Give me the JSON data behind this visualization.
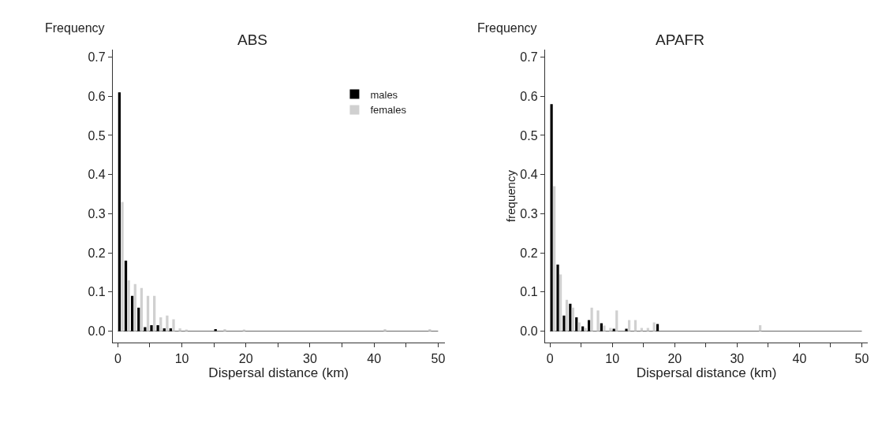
{
  "chart_data": [
    {
      "type": "histogram",
      "title": "ABS",
      "xlabel": "Dispersal distance (km)",
      "annotations": [
        "Frequency"
      ],
      "bins": [
        0,
        1,
        2,
        3,
        4,
        5,
        6,
        7,
        8,
        9,
        10,
        11,
        12,
        13,
        14,
        15,
        16,
        17,
        18,
        19,
        20,
        21,
        22,
        23,
        24,
        25,
        26,
        27,
        28,
        29,
        30,
        31,
        32,
        33,
        34,
        35,
        36,
        37,
        38,
        39,
        40,
        41,
        42,
        43,
        44,
        45,
        46,
        47,
        48,
        49,
        50
      ],
      "series": [
        {
          "name": "males",
          "color": "#000000",
          "values": [
            0.61,
            0.18,
            0.09,
            0.06,
            0.01,
            0.015,
            0.015,
            0.007,
            0.007,
            0,
            0,
            0,
            0,
            0,
            0,
            0.005,
            0,
            0,
            0,
            0,
            0,
            0,
            0,
            0,
            0,
            0,
            0,
            0,
            0,
            0,
            0,
            0,
            0,
            0,
            0,
            0,
            0,
            0,
            0,
            0,
            0,
            0,
            0,
            0,
            0,
            0,
            0,
            0,
            0,
            0
          ]
        },
        {
          "name": "females",
          "color": "#d0d0d0",
          "values": [
            0.33,
            0.13,
            0.12,
            0.11,
            0.09,
            0.09,
            0.035,
            0.04,
            0.03,
            0.007,
            0.003,
            0,
            0,
            0,
            0,
            0,
            0.005,
            0,
            0,
            0.004,
            0,
            0,
            0,
            0,
            0,
            0,
            0,
            0,
            0,
            0,
            0,
            0,
            0,
            0,
            0,
            0,
            0,
            0,
            0,
            0,
            0,
            0.005,
            0,
            0,
            0,
            0,
            0,
            0,
            0.005,
            0
          ]
        }
      ],
      "xlim": [
        -0.8,
        51
      ],
      "ylim": [
        -0.03,
        0.72
      ],
      "xticks": [
        0,
        {
          "value": 5,
          "label": null
        },
        10,
        {
          "value": 15,
          "label": null
        },
        20,
        {
          "value": 25,
          "label": null
        },
        30,
        {
          "value": 35,
          "label": null
        },
        40,
        {
          "value": 45,
          "label": null
        },
        50
      ],
      "yticks": [
        {
          "value": 0,
          "label": "0.0"
        },
        {
          "value": 0.1,
          "label": "0.1"
        },
        {
          "value": 0.2,
          "label": "0.2"
        },
        {
          "value": 0.3,
          "label": "0.3"
        },
        {
          "value": 0.4,
          "label": "0.4"
        },
        {
          "value": 0.5,
          "label": "0.5"
        },
        {
          "value": 0.6,
          "label": "0.6"
        },
        {
          "value": 0.7,
          "label": "0.7"
        }
      ],
      "ref_lines": [
        {
          "axis": "y",
          "value": 0,
          "color": "#666666"
        }
      ],
      "legend": "top right"
    },
    {
      "type": "histogram",
      "title": "APAFR",
      "xlabel": "Dispersal distance (km)",
      "ylabel": "frequency",
      "annotations": [
        "Frequency"
      ],
      "bins": [
        0,
        1,
        2,
        3,
        4,
        5,
        6,
        7,
        8,
        9,
        10,
        11,
        12,
        13,
        14,
        15,
        16,
        17,
        18,
        19,
        20,
        21,
        22,
        23,
        24,
        25,
        26,
        27,
        28,
        29,
        30,
        31,
        32,
        33,
        34,
        35,
        36,
        37,
        38,
        39,
        40,
        41,
        42,
        43,
        44,
        45,
        46,
        47,
        48,
        49,
        50
      ],
      "series": [
        {
          "color": "#000000",
          "values": [
            0.58,
            0.17,
            0.04,
            0.07,
            0.035,
            0.012,
            0.028,
            0,
            0.02,
            0,
            0.006,
            0,
            0.006,
            0,
            0,
            0,
            0,
            0.018,
            0,
            0,
            0,
            0,
            0,
            0,
            0,
            0,
            0,
            0,
            0,
            0,
            0,
            0,
            0,
            0,
            0,
            0,
            0,
            0,
            0,
            0,
            0,
            0,
            0,
            0,
            0,
            0,
            0,
            0,
            0,
            0
          ]
        },
        {
          "color": "#d0d0d0",
          "values": [
            0.37,
            0.145,
            0.08,
            0.06,
            0.022,
            0.008,
            0.06,
            0.053,
            0.014,
            0.008,
            0.053,
            0,
            0.028,
            0.028,
            0.008,
            0.008,
            0.022,
            0,
            0,
            0,
            0,
            0,
            0,
            0,
            0,
            0,
            0,
            0,
            0,
            0,
            0,
            0,
            0,
            0.015,
            0,
            0,
            0,
            0,
            0,
            0,
            0,
            0,
            0,
            0,
            0,
            0,
            0,
            0,
            0,
            0
          ]
        }
      ],
      "xlim": [
        -0.8,
        51
      ],
      "ylim": [
        -0.03,
        0.72
      ],
      "xticks": [
        0,
        {
          "value": 5,
          "label": null
        },
        10,
        {
          "value": 15,
          "label": null
        },
        20,
        {
          "value": 25,
          "label": null
        },
        30,
        {
          "value": 35,
          "label": null
        },
        40,
        {
          "value": 45,
          "label": null
        },
        50
      ],
      "yticks": [
        {
          "value": 0,
          "label": "0.0"
        },
        {
          "value": 0.1,
          "label": "0.1"
        },
        {
          "value": 0.2,
          "label": "0.2"
        },
        {
          "value": 0.3,
          "label": "0.3"
        },
        {
          "value": 0.4,
          "label": "0.4"
        },
        {
          "value": 0.5,
          "label": "0.5"
        },
        {
          "value": 0.6,
          "label": "0.6"
        },
        {
          "value": 0.7,
          "label": "0.7"
        }
      ],
      "ref_lines": [
        {
          "axis": "y",
          "value": 0,
          "color": "#666666"
        }
      ]
    }
  ]
}
